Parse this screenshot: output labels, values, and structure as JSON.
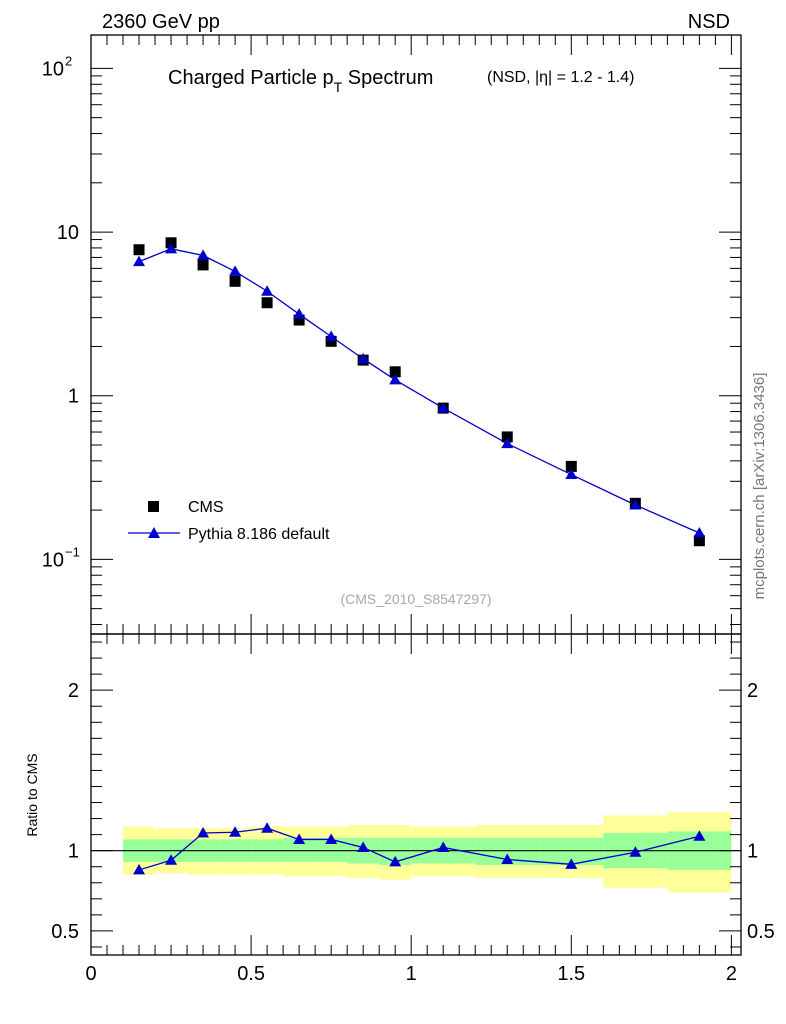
{
  "header": {
    "left": "2360 GeV pp",
    "right": "NSD"
  },
  "side_label": "mcplots.cern.ch [arXiv:1306.3436]",
  "chart_data": [
    {
      "type": "scatter",
      "title_main": "Charged Particle p",
      "title_sub": "T",
      "title_tail": " Spectrum",
      "title_cut": "(NSD, |η| = 1.2 - 1.4)",
      "watermark": "(CMS_2010_S8547297)",
      "y_scale": "log",
      "ylim": [
        0.035,
        160
      ],
      "xlim": [
        0,
        2.03
      ],
      "y_ticks": [
        {
          "value": 100,
          "base": "10",
          "exp": "2"
        },
        {
          "value": 10,
          "base": "10",
          "exp": ""
        },
        {
          "value": 1,
          "base": "1",
          "exp": ""
        },
        {
          "value": 0.1,
          "base": "10",
          "exp": "−1"
        }
      ],
      "legend_position": "bottom-left",
      "series": [
        {
          "name": "CMS",
          "marker": "square",
          "color": "#000000",
          "x": [
            0.15,
            0.25,
            0.35,
            0.45,
            0.55,
            0.65,
            0.75,
            0.85,
            0.95,
            1.1,
            1.3,
            1.5,
            1.7,
            1.9
          ],
          "y": [
            7.8,
            8.6,
            6.3,
            5.0,
            3.7,
            2.9,
            2.15,
            1.65,
            1.4,
            0.84,
            0.56,
            0.37,
            0.22,
            0.13
          ]
        },
        {
          "name": "Pythia 8.186 default",
          "marker": "triangle",
          "color": "#0000cc",
          "x": [
            0.15,
            0.25,
            0.35,
            0.45,
            0.55,
            0.65,
            0.75,
            0.85,
            0.95,
            1.1,
            1.3,
            1.5,
            1.7,
            1.9
          ],
          "y": [
            6.6,
            7.9,
            7.2,
            5.75,
            4.35,
            3.15,
            2.3,
            1.68,
            1.25,
            0.84,
            0.51,
            0.33,
            0.215,
            0.145
          ]
        }
      ]
    },
    {
      "type": "line",
      "ylabel": "Ratio to CMS",
      "ylim": [
        0.35,
        2.35
      ],
      "xlim": [
        0,
        2.03
      ],
      "y_ticks": [
        0.5,
        1,
        2
      ],
      "x_ticks": [
        0,
        0.5,
        1,
        1.5,
        2
      ],
      "x_tick_labels": [
        "0",
        "0.5",
        "1",
        "1.5",
        "2"
      ],
      "y_tick_labels": [
        "0.5",
        "1",
        "2"
      ],
      "reference_line": 1,
      "bands": {
        "yellow_color": "#ffff99",
        "green_color": "#99ff99",
        "bins": [
          {
            "x0": 0.1,
            "x1": 0.2,
            "y_lo": 0.85,
            "y_hi": 1.15,
            "g_lo": 0.93,
            "g_hi": 1.07
          },
          {
            "x0": 0.2,
            "x1": 0.3,
            "y_lo": 0.86,
            "y_hi": 1.14,
            "g_lo": 0.93,
            "g_hi": 1.07
          },
          {
            "x0": 0.3,
            "x1": 0.4,
            "y_lo": 0.85,
            "y_hi": 1.14,
            "g_lo": 0.93,
            "g_hi": 1.07
          },
          {
            "x0": 0.4,
            "x1": 0.5,
            "y_lo": 0.85,
            "y_hi": 1.14,
            "g_lo": 0.93,
            "g_hi": 1.07
          },
          {
            "x0": 0.5,
            "x1": 0.6,
            "y_lo": 0.85,
            "y_hi": 1.15,
            "g_lo": 0.93,
            "g_hi": 1.07
          },
          {
            "x0": 0.6,
            "x1": 0.7,
            "y_lo": 0.84,
            "y_hi": 1.15,
            "g_lo": 0.93,
            "g_hi": 1.08
          },
          {
            "x0": 0.7,
            "x1": 0.8,
            "y_lo": 0.84,
            "y_hi": 1.15,
            "g_lo": 0.93,
            "g_hi": 1.08
          },
          {
            "x0": 0.8,
            "x1": 0.9,
            "y_lo": 0.83,
            "y_hi": 1.16,
            "g_lo": 0.92,
            "g_hi": 1.08
          },
          {
            "x0": 0.9,
            "x1": 1.0,
            "y_lo": 0.82,
            "y_hi": 1.16,
            "g_lo": 0.91,
            "g_hi": 1.08
          },
          {
            "x0": 1.0,
            "x1": 1.2,
            "y_lo": 0.84,
            "y_hi": 1.15,
            "g_lo": 0.92,
            "g_hi": 1.08
          },
          {
            "x0": 1.2,
            "x1": 1.4,
            "y_lo": 0.83,
            "y_hi": 1.16,
            "g_lo": 0.91,
            "g_hi": 1.08
          },
          {
            "x0": 1.4,
            "x1": 1.6,
            "y_lo": 0.83,
            "y_hi": 1.16,
            "g_lo": 0.91,
            "g_hi": 1.08
          },
          {
            "x0": 1.6,
            "x1": 1.8,
            "y_lo": 0.77,
            "y_hi": 1.22,
            "g_lo": 0.89,
            "g_hi": 1.11
          },
          {
            "x0": 1.8,
            "x1": 2.0,
            "y_lo": 0.74,
            "y_hi": 1.24,
            "g_lo": 0.88,
            "g_hi": 1.12
          }
        ]
      },
      "series": [
        {
          "name": "Pythia 8.186 default",
          "color": "#0000cc",
          "x": [
            0.15,
            0.25,
            0.35,
            0.45,
            0.55,
            0.65,
            0.75,
            0.85,
            0.95,
            1.1,
            1.3,
            1.5,
            1.7,
            1.9
          ],
          "y": [
            0.88,
            0.94,
            1.11,
            1.115,
            1.14,
            1.07,
            1.07,
            1.02,
            0.93,
            1.02,
            0.945,
            0.915,
            0.99,
            1.09
          ]
        }
      ]
    }
  ]
}
